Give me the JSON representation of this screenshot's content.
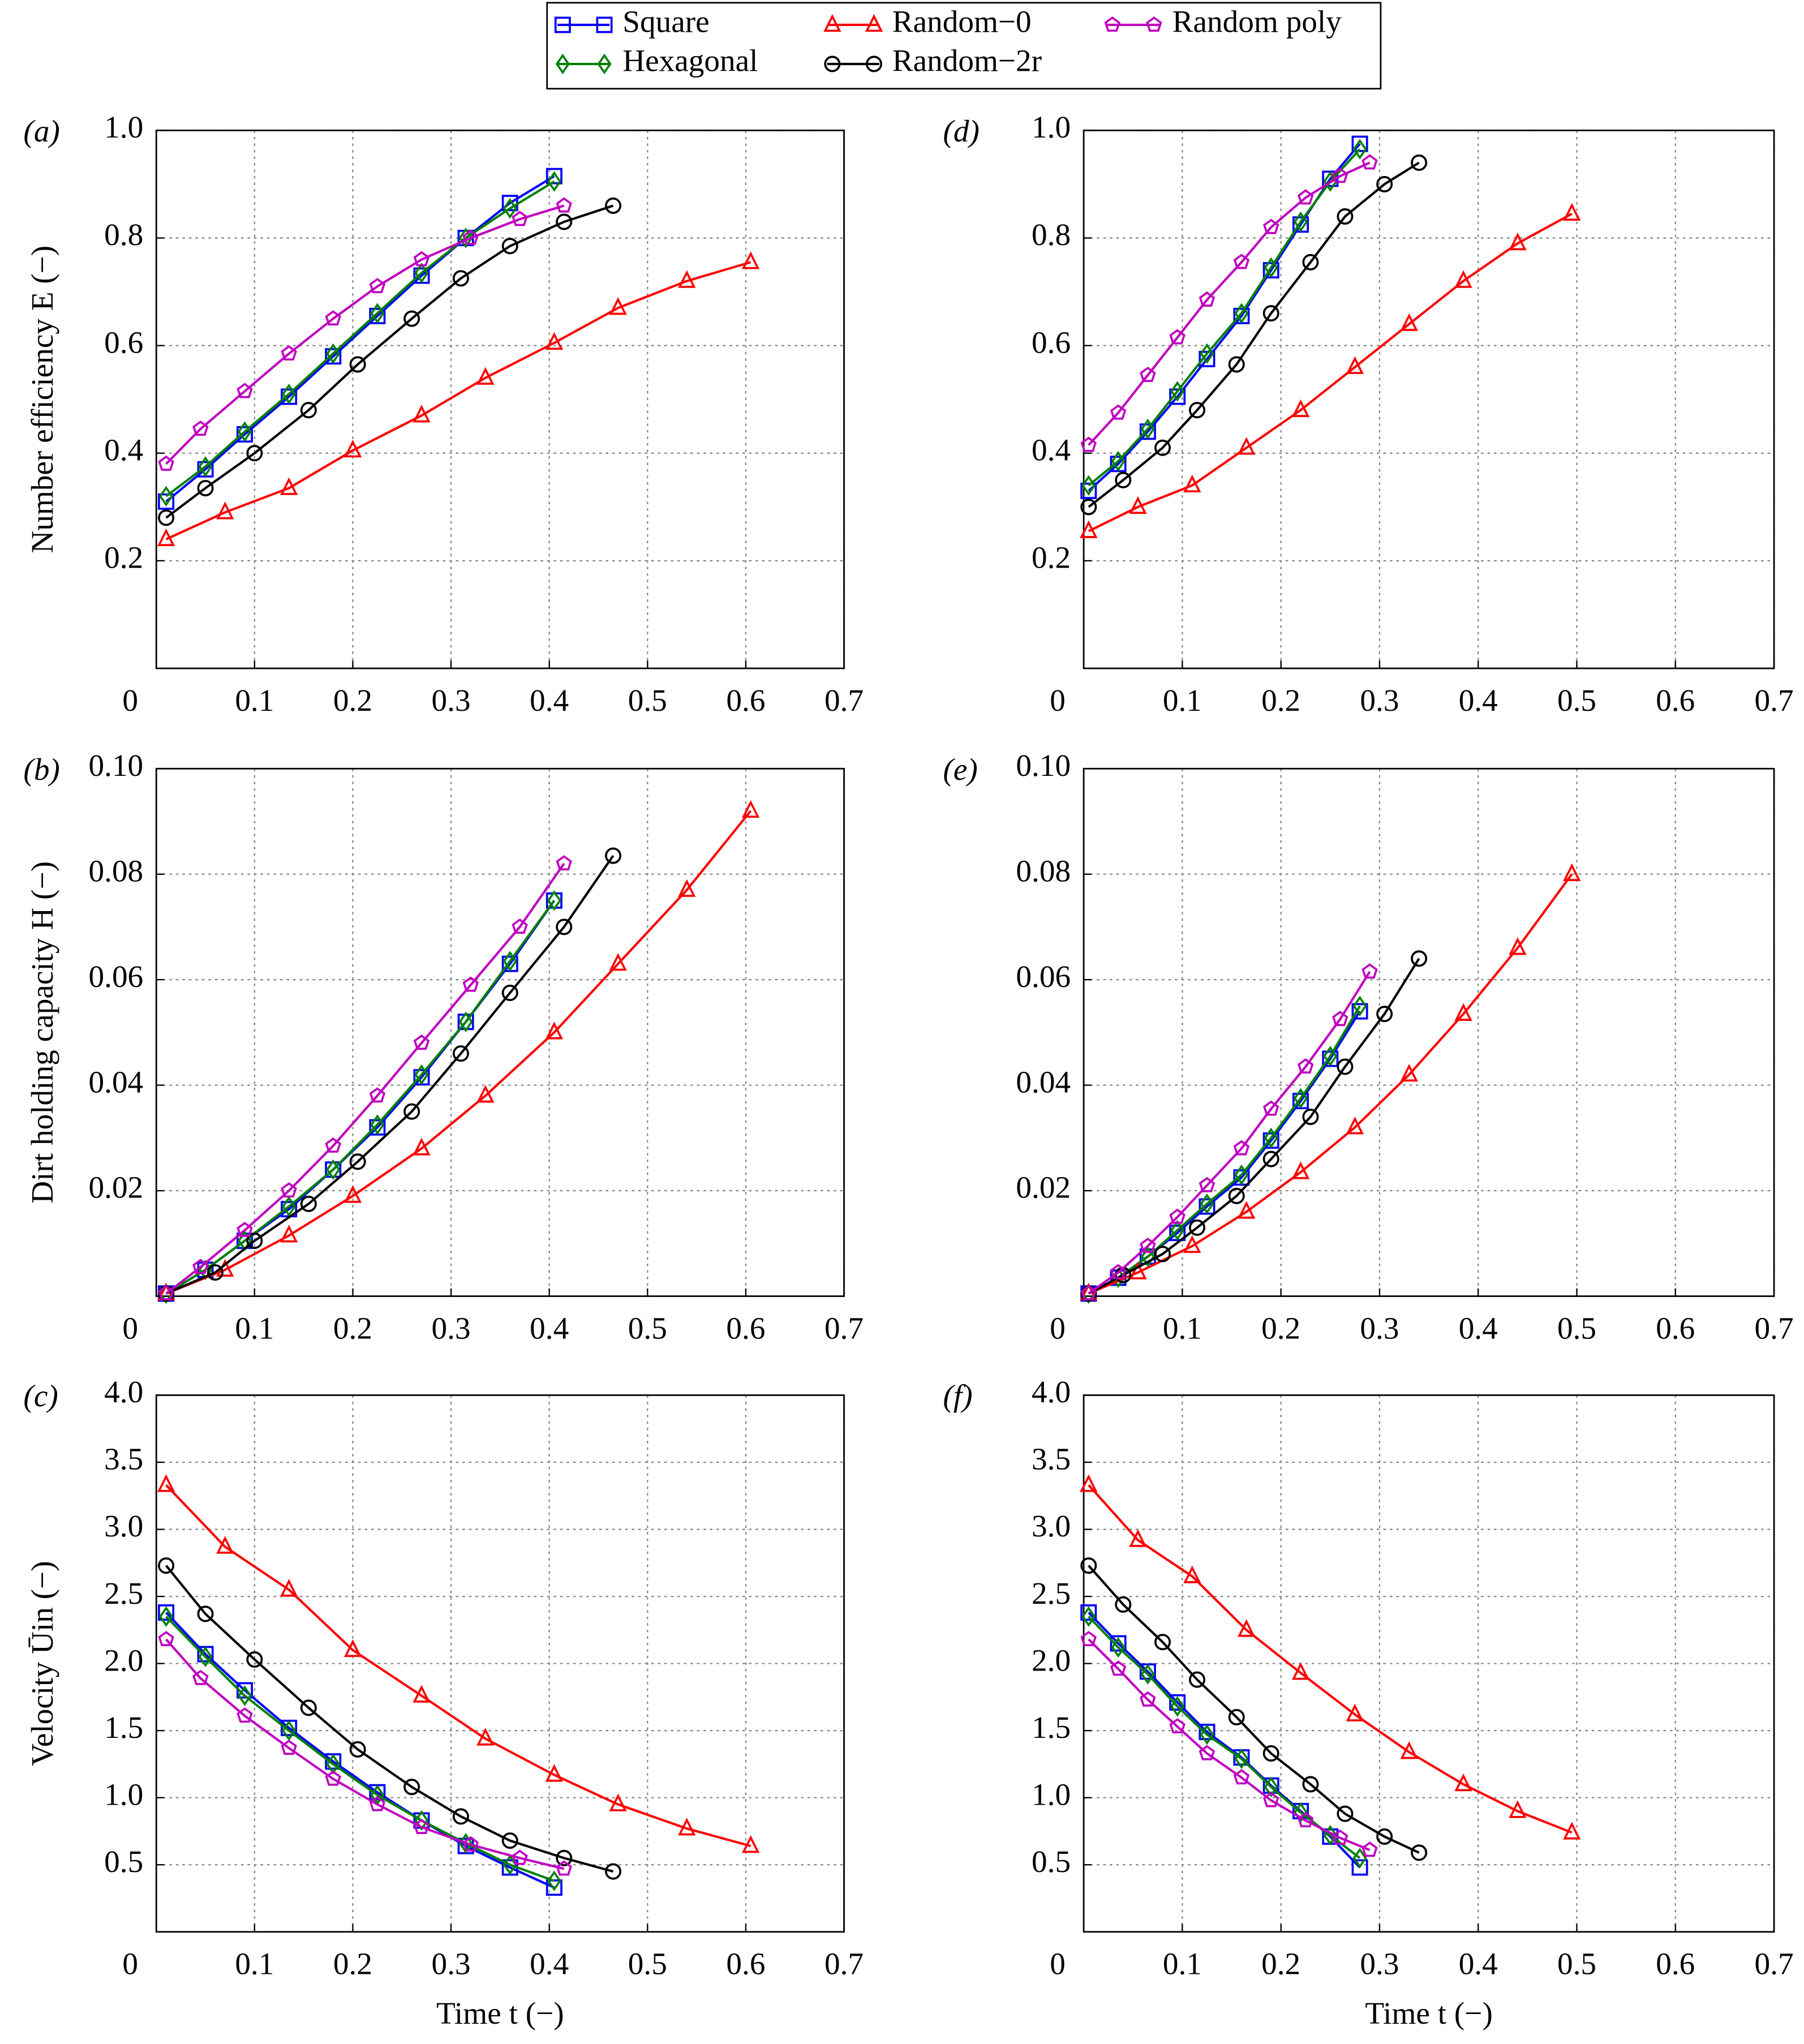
{
  "chart_data": [
    {
      "type": "line",
      "panel_label": "(a)",
      "ylabel": "Number efficiency E (−)",
      "legend": "top",
      "xlim": [
        0,
        0.7
      ],
      "xticks": [
        0,
        0.1,
        0.2,
        0.3,
        0.4,
        0.5,
        0.6,
        0.7
      ],
      "ylim": [
        0,
        1
      ],
      "yticks": [
        0.2,
        0.4,
        0.6,
        0.8,
        {
          "value": 1,
          "label": "1.0"
        }
      ],
      "grid": true,
      "series": [
        {
          "name": "Square",
          "color": "#0000ff",
          "marker": "square",
          "x": [
            0.01,
            0.05,
            0.09,
            0.135,
            0.18,
            0.225,
            0.27,
            0.315,
            0.36,
            0.405
          ],
          "values": [
            0.31,
            0.37,
            0.435,
            0.505,
            0.58,
            0.655,
            0.73,
            0.8,
            0.865,
            0.915
          ]
        },
        {
          "name": "Hexagonal",
          "color": "#008000",
          "marker": "diamond",
          "x": [
            0.01,
            0.05,
            0.09,
            0.135,
            0.18,
            0.225,
            0.27,
            0.315,
            0.36,
            0.405
          ],
          "values": [
            0.32,
            0.375,
            0.44,
            0.51,
            0.585,
            0.66,
            0.735,
            0.8,
            0.855,
            0.905
          ]
        },
        {
          "name": "Random−0",
          "color": "#ff0000",
          "marker": "triangle",
          "x": [
            0.01,
            0.07,
            0.135,
            0.2,
            0.27,
            0.335,
            0.405,
            0.47,
            0.54,
            0.605
          ],
          "values": [
            0.24,
            0.29,
            0.335,
            0.405,
            0.47,
            0.54,
            0.605,
            0.67,
            0.72,
            0.755
          ]
        },
        {
          "name": "Random−2r",
          "color": "#000000",
          "marker": "circle",
          "x": [
            0.01,
            0.05,
            0.1,
            0.155,
            0.205,
            0.26,
            0.31,
            0.36,
            0.415,
            0.465
          ],
          "values": [
            0.28,
            0.335,
            0.4,
            0.48,
            0.565,
            0.65,
            0.725,
            0.785,
            0.83,
            0.86
          ]
        },
        {
          "name": "Random poly",
          "color": "#bf00bf",
          "marker": "pentagon",
          "x": [
            0.01,
            0.045,
            0.09,
            0.135,
            0.18,
            0.225,
            0.27,
            0.32,
            0.37,
            0.415
          ],
          "values": [
            0.38,
            0.445,
            0.515,
            0.585,
            0.65,
            0.71,
            0.76,
            0.8,
            0.835,
            0.86
          ]
        }
      ]
    },
    {
      "type": "line",
      "panel_label": "(b)",
      "ylabel": "Dirt holding capacity H (−)",
      "xlim": [
        0,
        0.7
      ],
      "xticks": [
        0,
        0.1,
        0.2,
        0.3,
        0.4,
        0.5,
        0.6,
        0.7
      ],
      "ylim": [
        0,
        0.1
      ],
      "yticks": [
        0.02,
        0.04,
        0.06,
        0.08,
        {
          "value": 0.1,
          "label": "0.10"
        }
      ],
      "grid": true,
      "series": [
        {
          "color": "#0000ff",
          "marker": "square",
          "x": [
            0.01,
            0.05,
            0.09,
            0.135,
            0.18,
            0.225,
            0.27,
            0.315,
            0.36,
            0.405
          ],
          "values": [
            0.0005,
            0.005,
            0.0105,
            0.0165,
            0.024,
            0.032,
            0.0415,
            0.052,
            0.063,
            0.075
          ]
        },
        {
          "color": "#008000",
          "marker": "diamond",
          "x": [
            0.01,
            0.05,
            0.09,
            0.135,
            0.18,
            0.225,
            0.27,
            0.315,
            0.36,
            0.405
          ],
          "values": [
            0.0005,
            0.005,
            0.0105,
            0.017,
            0.024,
            0.0325,
            0.042,
            0.052,
            0.0635,
            0.075
          ]
        },
        {
          "color": "#ff0000",
          "marker": "triangle",
          "x": [
            0.01,
            0.07,
            0.135,
            0.2,
            0.27,
            0.335,
            0.405,
            0.47,
            0.54,
            0.605
          ],
          "values": [
            0.0005,
            0.005,
            0.0115,
            0.019,
            0.028,
            0.038,
            0.05,
            0.063,
            0.077,
            0.092
          ]
        },
        {
          "color": "#000000",
          "marker": "circle",
          "x": [
            0.01,
            0.06,
            0.1,
            0.155,
            0.205,
            0.26,
            0.31,
            0.36,
            0.415,
            0.465
          ],
          "values": [
            0.0005,
            0.0045,
            0.0105,
            0.0175,
            0.0255,
            0.035,
            0.046,
            0.0575,
            0.07,
            0.0835
          ]
        },
        {
          "color": "#bf00bf",
          "marker": "pentagon",
          "x": [
            0.01,
            0.045,
            0.09,
            0.135,
            0.18,
            0.225,
            0.27,
            0.32,
            0.37,
            0.415
          ],
          "values": [
            0.0005,
            0.0055,
            0.0125,
            0.02,
            0.0285,
            0.038,
            0.048,
            0.059,
            0.07,
            0.082
          ]
        }
      ]
    },
    {
      "type": "line",
      "panel_label": "(c)",
      "ylabel": "Velocity Ūin (−)",
      "xlabel": "Time t (−)",
      "xlim": [
        0,
        0.7
      ],
      "xticks": [
        0,
        0.1,
        0.2,
        0.3,
        0.4,
        0.5,
        0.6,
        0.7
      ],
      "ylim": [
        0,
        4
      ],
      "yticks": [
        0.5,
        {
          "value": 1,
          "label": "1.0"
        },
        1.5,
        {
          "value": 2,
          "label": "2.0"
        },
        2.5,
        {
          "value": 3,
          "label": "3.0"
        },
        3.5,
        {
          "value": 4,
          "label": "4.0"
        }
      ],
      "grid": true,
      "series": [
        {
          "color": "#0000ff",
          "marker": "square",
          "x": [
            0.01,
            0.05,
            0.09,
            0.135,
            0.18,
            0.225,
            0.27,
            0.315,
            0.36,
            0.405
          ],
          "values": [
            2.38,
            2.07,
            1.8,
            1.52,
            1.27,
            1.04,
            0.83,
            0.64,
            0.48,
            0.33
          ]
        },
        {
          "color": "#008000",
          "marker": "diamond",
          "x": [
            0.01,
            0.05,
            0.09,
            0.135,
            0.18,
            0.225,
            0.27,
            0.315,
            0.36,
            0.405
          ],
          "values": [
            2.35,
            2.05,
            1.76,
            1.5,
            1.25,
            1.02,
            0.83,
            0.66,
            0.5,
            0.38
          ]
        },
        {
          "color": "#ff0000",
          "marker": "triangle",
          "x": [
            0.01,
            0.07,
            0.135,
            0.2,
            0.27,
            0.335,
            0.405,
            0.47,
            0.54,
            0.605
          ],
          "values": [
            3.33,
            2.87,
            2.55,
            2.1,
            1.76,
            1.44,
            1.17,
            0.95,
            0.77,
            0.64
          ]
        },
        {
          "color": "#000000",
          "marker": "circle",
          "x": [
            0.01,
            0.05,
            0.1,
            0.155,
            0.205,
            0.26,
            0.31,
            0.36,
            0.415,
            0.465
          ],
          "values": [
            2.73,
            2.37,
            2.03,
            1.67,
            1.36,
            1.08,
            0.86,
            0.68,
            0.55,
            0.45
          ]
        },
        {
          "color": "#bf00bf",
          "marker": "pentagon",
          "x": [
            0.01,
            0.045,
            0.09,
            0.135,
            0.18,
            0.225,
            0.27,
            0.32,
            0.37,
            0.415
          ],
          "values": [
            2.18,
            1.89,
            1.61,
            1.37,
            1.14,
            0.95,
            0.78,
            0.65,
            0.55,
            0.47
          ]
        }
      ]
    },
    {
      "type": "line",
      "panel_label": "(d)",
      "xlim": [
        0,
        0.7
      ],
      "xticks": [
        0,
        0.1,
        0.2,
        0.3,
        0.4,
        0.5,
        0.6,
        0.7
      ],
      "ylim": [
        0,
        1
      ],
      "yticks": [
        0.2,
        0.4,
        0.6,
        0.8,
        {
          "value": 1,
          "label": "1.0"
        }
      ],
      "grid": true,
      "series": [
        {
          "color": "#0000ff",
          "marker": "square",
          "x": [
            0.005,
            0.035,
            0.065,
            0.095,
            0.125,
            0.16,
            0.19,
            0.22,
            0.25,
            0.28
          ],
          "values": [
            0.33,
            0.38,
            0.44,
            0.505,
            0.575,
            0.655,
            0.74,
            0.825,
            0.91,
            0.975
          ]
        },
        {
          "color": "#008000",
          "marker": "diamond",
          "x": [
            0.005,
            0.035,
            0.065,
            0.095,
            0.125,
            0.16,
            0.19,
            0.22,
            0.25,
            0.28
          ],
          "values": [
            0.34,
            0.385,
            0.445,
            0.515,
            0.585,
            0.66,
            0.745,
            0.83,
            0.905,
            0.965
          ]
        },
        {
          "color": "#ff0000",
          "marker": "triangle",
          "x": [
            0.005,
            0.055,
            0.11,
            0.165,
            0.22,
            0.275,
            0.33,
            0.385,
            0.44,
            0.495
          ],
          "values": [
            0.255,
            0.3,
            0.34,
            0.41,
            0.48,
            0.56,
            0.64,
            0.72,
            0.79,
            0.845
          ]
        },
        {
          "color": "#000000",
          "marker": "circle",
          "x": [
            0.005,
            0.04,
            0.08,
            0.115,
            0.155,
            0.19,
            0.23,
            0.265,
            0.305,
            0.34
          ],
          "values": [
            0.3,
            0.35,
            0.41,
            0.48,
            0.565,
            0.66,
            0.755,
            0.84,
            0.9,
            0.94
          ]
        },
        {
          "color": "#bf00bf",
          "marker": "pentagon",
          "x": [
            0.005,
            0.035,
            0.065,
            0.095,
            0.125,
            0.16,
            0.19,
            0.225,
            0.26,
            0.29
          ],
          "values": [
            0.415,
            0.475,
            0.545,
            0.615,
            0.685,
            0.755,
            0.82,
            0.875,
            0.915,
            0.94
          ]
        }
      ]
    },
    {
      "type": "line",
      "panel_label": "(e)",
      "xlim": [
        0,
        0.7
      ],
      "xticks": [
        0,
        0.1,
        0.2,
        0.3,
        0.4,
        0.5,
        0.6,
        0.7
      ],
      "ylim": [
        0,
        0.1
      ],
      "yticks": [
        0.02,
        0.04,
        0.06,
        0.08,
        {
          "value": 0.1,
          "label": "0.10"
        }
      ],
      "grid": true,
      "series": [
        {
          "color": "#0000ff",
          "marker": "square",
          "x": [
            0.005,
            0.035,
            0.065,
            0.095,
            0.125,
            0.16,
            0.19,
            0.22,
            0.25,
            0.28
          ],
          "values": [
            0.0005,
            0.0035,
            0.0075,
            0.012,
            0.017,
            0.0225,
            0.0295,
            0.037,
            0.045,
            0.054
          ]
        },
        {
          "color": "#008000",
          "marker": "diamond",
          "x": [
            0.005,
            0.035,
            0.065,
            0.095,
            0.125,
            0.16,
            0.19,
            0.22,
            0.25,
            0.28
          ],
          "values": [
            0.0005,
            0.0035,
            0.0075,
            0.0125,
            0.0175,
            0.023,
            0.03,
            0.0375,
            0.0455,
            0.055
          ]
        },
        {
          "color": "#ff0000",
          "marker": "triangle",
          "x": [
            0.005,
            0.055,
            0.11,
            0.165,
            0.22,
            0.275,
            0.33,
            0.385,
            0.44,
            0.495
          ],
          "values": [
            0.0005,
            0.0045,
            0.0095,
            0.016,
            0.0235,
            0.032,
            0.042,
            0.0535,
            0.066,
            0.08
          ]
        },
        {
          "color": "#000000",
          "marker": "circle",
          "x": [
            0.005,
            0.04,
            0.08,
            0.115,
            0.155,
            0.19,
            0.23,
            0.265,
            0.305,
            0.34
          ],
          "values": [
            0.0005,
            0.004,
            0.008,
            0.013,
            0.019,
            0.026,
            0.034,
            0.0435,
            0.0535,
            0.064
          ]
        },
        {
          "color": "#bf00bf",
          "marker": "pentagon",
          "x": [
            0.005,
            0.035,
            0.065,
            0.095,
            0.125,
            0.16,
            0.19,
            0.225,
            0.26,
            0.29
          ],
          "values": [
            0.0005,
            0.0045,
            0.0095,
            0.015,
            0.021,
            0.028,
            0.0355,
            0.0435,
            0.0525,
            0.0615
          ]
        }
      ]
    },
    {
      "type": "line",
      "panel_label": "(f)",
      "xlabel": "Time t (−)",
      "xlim": [
        0,
        0.7
      ],
      "xticks": [
        0,
        0.1,
        0.2,
        0.3,
        0.4,
        0.5,
        0.6,
        0.7
      ],
      "ylim": [
        0,
        4
      ],
      "yticks": [
        0.5,
        {
          "value": 1,
          "label": "1.0"
        },
        1.5,
        {
          "value": 2,
          "label": "2.0"
        },
        2.5,
        {
          "value": 3,
          "label": "3.0"
        },
        3.5,
        {
          "value": 4,
          "label": "4.0"
        }
      ],
      "grid": true,
      "series": [
        {
          "color": "#0000ff",
          "marker": "square",
          "x": [
            0.005,
            0.035,
            0.065,
            0.095,
            0.125,
            0.16,
            0.19,
            0.22,
            0.25,
            0.28
          ],
          "values": [
            2.38,
            2.15,
            1.94,
            1.71,
            1.49,
            1.3,
            1.09,
            0.9,
            0.71,
            0.48
          ]
        },
        {
          "color": "#008000",
          "marker": "diamond",
          "x": [
            0.005,
            0.035,
            0.065,
            0.095,
            0.125,
            0.16,
            0.19,
            0.22,
            0.25,
            0.28
          ],
          "values": [
            2.35,
            2.12,
            1.92,
            1.68,
            1.47,
            1.29,
            1.08,
            0.89,
            0.72,
            0.55
          ]
        },
        {
          "color": "#ff0000",
          "marker": "triangle",
          "x": [
            0.005,
            0.055,
            0.11,
            0.165,
            0.22,
            0.275,
            0.33,
            0.385,
            0.44,
            0.495
          ],
          "values": [
            3.33,
            2.92,
            2.65,
            2.25,
            1.93,
            1.62,
            1.34,
            1.1,
            0.9,
            0.74
          ]
        },
        {
          "color": "#000000",
          "marker": "circle",
          "x": [
            0.005,
            0.04,
            0.08,
            0.115,
            0.155,
            0.19,
            0.23,
            0.265,
            0.305,
            0.34
          ],
          "values": [
            2.73,
            2.44,
            2.16,
            1.88,
            1.6,
            1.33,
            1.1,
            0.88,
            0.71,
            0.59
          ]
        },
        {
          "color": "#bf00bf",
          "marker": "pentagon",
          "x": [
            0.005,
            0.035,
            0.065,
            0.095,
            0.125,
            0.16,
            0.19,
            0.225,
            0.26,
            0.29
          ],
          "values": [
            2.18,
            1.96,
            1.73,
            1.53,
            1.33,
            1.15,
            0.98,
            0.83,
            0.7,
            0.61
          ]
        }
      ]
    }
  ]
}
